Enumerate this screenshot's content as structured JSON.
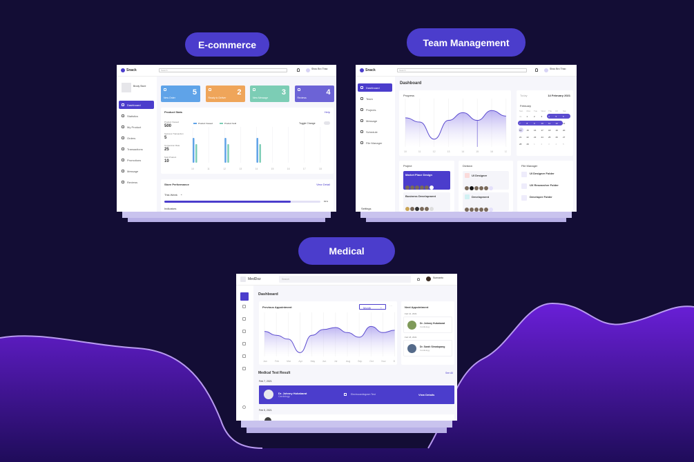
{
  "labels": {
    "ecommerce": "E-commerce",
    "team": "Team Management",
    "medical": "Medical"
  },
  "colors": {
    "background": "#130d35",
    "accent": "#4b3dcc",
    "wave": "#6a1fd8",
    "order": "#5fa3e8",
    "deliver": "#efa55a",
    "message": "#7ccdb5",
    "reviews": "#6c63d6"
  },
  "ecom": {
    "logo": "Snack",
    "search_placeholder": "Search",
    "user": "Shou Bro Thao",
    "store": "Brody Store",
    "nav": [
      "Dashboard",
      "Statistics",
      "My Product",
      "Orders",
      "Transactions",
      "Promotions",
      "Message",
      "Reviews"
    ],
    "cards": [
      {
        "label": "New Order",
        "value": "5",
        "icon": "cart-icon"
      },
      {
        "label": "Ready to Deliver",
        "value": "2",
        "icon": "truck-icon"
      },
      {
        "label": "New Message",
        "value": "3",
        "icon": "message-icon"
      },
      {
        "label": "Reviews",
        "value": "4",
        "icon": "review-icon"
      }
    ],
    "stats_title": "Product Stats",
    "help": "Help",
    "stats": [
      {
        "label": "Product Viewed",
        "value": "500"
      },
      {
        "label": "Success Transaction",
        "value": "5"
      },
      {
        "label": "Conversion Rate",
        "value": "25"
      },
      {
        "label": "Sold Product",
        "value": "10"
      }
    ],
    "legend": [
      "Product Viewed",
      "Product Sold"
    ],
    "toggle": "Toggle Change",
    "bar_x": [
      "10",
      "11",
      "12",
      "13",
      "14",
      "15",
      "16",
      "17",
      "18"
    ],
    "bars_viewed": [
      0.8,
      0,
      0.8,
      0,
      0.8,
      0,
      0,
      0,
      0
    ],
    "bars_sold": [
      0.6,
      0,
      0.6,
      0,
      0.6,
      0,
      0,
      0,
      0
    ],
    "perf_title": "Store Performance",
    "view_detail": "View Detail",
    "period": "This Week",
    "progress": 81,
    "progress_label": "81%",
    "indicators": "Indicators"
  },
  "team": {
    "logo": "Snack",
    "search_placeholder": "Search",
    "user": "Shou Bro Thao",
    "nav": [
      "Dashboard",
      "Team",
      "Projects",
      "Message",
      "Schedule",
      "File Manager"
    ],
    "settings": "Settings",
    "title": "Dashboard",
    "progress_title": "Progress",
    "x": [
      "10",
      "11",
      "12",
      "13",
      "14",
      "15",
      "16",
      "17"
    ],
    "values": [
      0.68,
      0.58,
      0.18,
      0.62,
      0.8,
      0.62,
      0.85,
      0.72
    ],
    "today": "Today",
    "date": "14 February 2021",
    "month": "February",
    "weekdays": [
      "Sun",
      "Mon",
      "Tue",
      "Wed",
      "Thu",
      "Fri",
      "Sat"
    ],
    "days": [
      "31",
      "1",
      "2",
      "3",
      "4",
      "5",
      "6",
      "7",
      "8",
      "9",
      "10",
      "11",
      "12",
      "13",
      "14",
      "15",
      "16",
      "17",
      "18",
      "19",
      "20",
      "21",
      "22",
      "23",
      "24",
      "25",
      "26",
      "27",
      "28",
      "29",
      "1",
      "2",
      "3",
      "4",
      "5"
    ],
    "project_title": "Project",
    "projects": [
      {
        "name": "Market Place Design"
      },
      {
        "name": "Business Development"
      }
    ],
    "division_title": "Division",
    "divisions": [
      "UI Designer",
      "Development"
    ],
    "files_title": "File Manager",
    "files": [
      "UI Designer Folder",
      "UX Researcher Folder",
      "Developer Folder"
    ]
  },
  "med": {
    "logo": "MedDoz",
    "search_placeholder": "Search",
    "user": "Sunnanto",
    "title": "Dashboard",
    "prev_title": "Previous Appointment",
    "period": "Month",
    "x": [
      "Jan",
      "Feb",
      "Mar",
      "Apr",
      "May",
      "Jun",
      "Jul",
      "Aug",
      "Sep",
      "Oct",
      "Nov",
      "Dec"
    ],
    "values": [
      0.65,
      0.55,
      0.45,
      0.1,
      0.55,
      0.7,
      0.75,
      0.62,
      0.5,
      0.78,
      0.62,
      0.68
    ],
    "next_title": "Next Appointment",
    "next": [
      {
        "date": "Feb 14, 2021",
        "doctor": "Dr. Johnny Hukabarat",
        "spec": "Cardiology"
      },
      {
        "date": "Feb 18, 2021",
        "doctor": "Dr. Sarah Simatupang",
        "spec": "Cardiology"
      }
    ],
    "results_title": "Medical Test Result",
    "see_all": "See All",
    "results": [
      {
        "date": "Feb 7, 2021",
        "doctor": "Dr. Johnny Hukabarat",
        "spec": "Cardiology",
        "test": "Electrocardiogram Test",
        "action": "View Details"
      },
      {
        "date": "Feb 5, 2021"
      }
    ]
  }
}
